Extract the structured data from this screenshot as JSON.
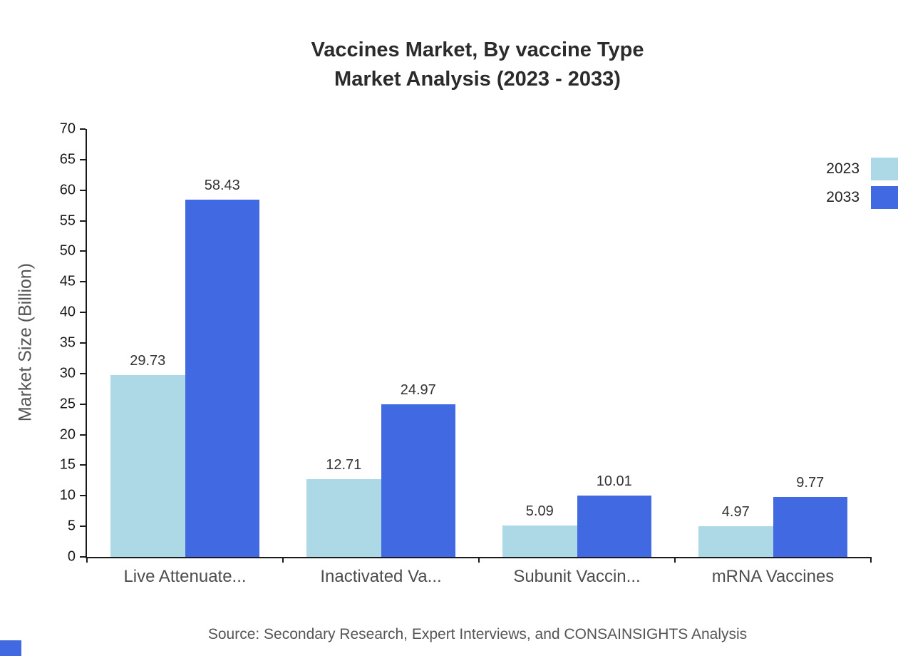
{
  "title": {
    "line1": "Vaccines Market, By vaccine Type",
    "line2": "Market Analysis (2023 - 2033)"
  },
  "chart_data": {
    "type": "bar",
    "categories": [
      "Live Attenuate...",
      "Inactivated Va...",
      "Subunit Vaccin...",
      "mRNA Vaccines"
    ],
    "series": [
      {
        "name": "2023",
        "color": "#ADD8E6",
        "values": [
          29.73,
          12.71,
          5.09,
          4.97
        ]
      },
      {
        "name": "2033",
        "color": "#4169E1",
        "values": [
          58.43,
          24.97,
          10.01,
          9.77
        ]
      }
    ],
    "title": "Vaccines Market, By vaccine Type Market Analysis (2023 - 2033)",
    "xlabel": "",
    "ylabel": "Market Size (Billion)",
    "ylim": [
      0,
      70
    ],
    "ytick_step": 5,
    "grid": false,
    "legend_position": "top-right"
  },
  "source": "Source: Secondary Research, Expert Interviews, and CONSAINSIGHTS Analysis",
  "colors": {
    "axis": "#1a1a1a",
    "accent": "#4169E1"
  }
}
